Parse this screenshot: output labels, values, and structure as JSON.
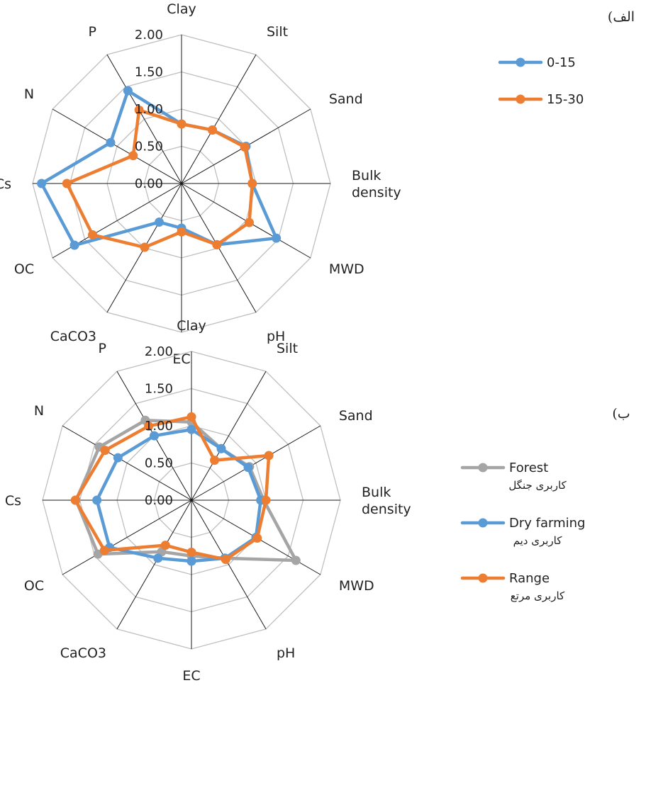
{
  "chart_data": [
    {
      "type": "radar",
      "panel_label": "الف)",
      "axes": [
        "Clay",
        "Silt",
        "Sand",
        "Bulk density",
        "MWD",
        "pH",
        "EC",
        "CaCO3",
        "OC",
        "Cs",
        "N",
        "P"
      ],
      "axis_label_lines": [
        [
          "Clay"
        ],
        [
          "Silt"
        ],
        [
          "Sand"
        ],
        [
          "Bulk",
          "density"
        ],
        [
          "MWD"
        ],
        [
          "pH"
        ],
        [
          "EC"
        ],
        [
          "CaCO3"
        ],
        [
          "OC"
        ],
        [
          "Cs"
        ],
        [
          "N"
        ],
        [
          "P"
        ]
      ],
      "ticks": [
        "0.00",
        "0.50",
        "1.00",
        "1.50",
        "2.00"
      ],
      "tick_values": [
        0,
        0.5,
        1.0,
        1.5,
        2.0
      ],
      "rmax": 2.0,
      "series": [
        {
          "name": "0-15",
          "color": "#5B9BD5",
          "values": [
            0.8,
            0.83,
            1.0,
            0.95,
            1.47,
            0.95,
            0.6,
            0.6,
            1.66,
            1.88,
            1.1,
            1.44
          ]
        },
        {
          "name": "15-30",
          "color": "#ED7D31",
          "values": [
            0.8,
            0.83,
            0.98,
            0.95,
            1.05,
            0.95,
            0.65,
            0.99,
            1.38,
            1.54,
            0.75,
            1.14
          ]
        }
      ],
      "legend": [
        {
          "text": "0-15",
          "color": "#5B9BD5"
        },
        {
          "text": "15-30",
          "color": "#ED7D31"
        }
      ]
    },
    {
      "type": "radar",
      "panel_label": "ب)",
      "axes": [
        "Clay",
        "Silt",
        "Sand",
        "Bulk density",
        "MWD",
        "pH",
        "EC",
        "CaCO3",
        "OC",
        "Cs",
        "N",
        "P"
      ],
      "axis_label_lines": [
        [
          "Clay"
        ],
        [
          "Silt"
        ],
        [
          "Sand"
        ],
        [
          "Bulk",
          "density"
        ],
        [
          "MWD"
        ],
        [
          "pH"
        ],
        [
          "EC"
        ],
        [
          "CaCO3"
        ],
        [
          "OC"
        ],
        [
          "Cs"
        ],
        [
          "N"
        ],
        [
          "P"
        ]
      ],
      "ticks": [
        "0.00",
        "0.50",
        "1.00",
        "1.50",
        "2.00"
      ],
      "tick_values": [
        0,
        0.5,
        1.0,
        1.5,
        2.0
      ],
      "rmax": 2.0,
      "series": [
        {
          "name": "Forest",
          "color": "#A5A5A5",
          "values": [
            1.05,
            0.8,
            0.9,
            0.97,
            1.62,
            0.9,
            0.75,
            0.8,
            1.45,
            1.55,
            1.43,
            1.24
          ]
        },
        {
          "name": "Dry farming",
          "color": "#5B9BD5",
          "values": [
            0.95,
            0.8,
            0.88,
            0.93,
            1.0,
            0.9,
            0.82,
            0.9,
            1.27,
            1.27,
            1.14,
            1.0
          ]
        },
        {
          "name": "Range",
          "color": "#ED7D31",
          "values": [
            1.12,
            0.62,
            1.2,
            1.0,
            1.02,
            0.92,
            0.7,
            0.7,
            1.35,
            1.56,
            1.34,
            1.15
          ]
        }
      ],
      "legend": [
        {
          "text": "Forest",
          "sub": "کاربری جنگل",
          "color": "#A5A5A5"
        },
        {
          "text": "Dry farming",
          "sub": "کاربری دیم",
          "color": "#5B9BD5"
        },
        {
          "text": "Range",
          "sub": "کاربری مرتع",
          "color": "#ED7D31"
        }
      ]
    }
  ]
}
